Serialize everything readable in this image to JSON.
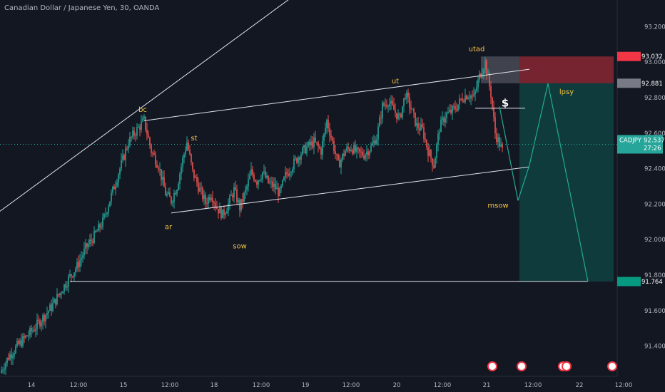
{
  "header": {
    "title": "Canadian Dollar / Japanese Yen, 30, OANDA"
  },
  "chart_data": {
    "type": "candlestick",
    "symbol": "CADJPY",
    "ylim": [
      91.23,
      93.35
    ],
    "y_ticks": [
      "93.200",
      "93.000",
      "92.800",
      "92.600",
      "92.400",
      "92.200",
      "92.000",
      "91.800",
      "91.600",
      "91.400"
    ],
    "y_tick_values": [
      93.2,
      93.0,
      92.8,
      92.6,
      92.4,
      92.2,
      92.0,
      91.8,
      91.6,
      91.4
    ],
    "x_ticks": [
      "14",
      "12:00",
      "15",
      "12:00",
      "18",
      "12:00",
      "19",
      "12:00",
      "20",
      "12:00",
      "21",
      "12:00",
      "12:00",
      "22",
      "12:00"
    ],
    "price_path": [
      [
        0,
        91.25
      ],
      [
        6,
        91.34
      ],
      [
        12,
        91.4
      ],
      [
        18,
        91.45
      ],
      [
        24,
        91.5
      ],
      [
        30,
        91.56
      ],
      [
        36,
        91.62
      ],
      [
        42,
        91.7
      ],
      [
        48,
        91.78
      ],
      [
        54,
        91.85
      ],
      [
        60,
        91.95
      ],
      [
        66,
        92.02
      ],
      [
        72,
        92.1
      ],
      [
        78,
        92.25
      ],
      [
        84,
        92.4
      ],
      [
        90,
        92.55
      ],
      [
        96,
        92.62
      ],
      [
        101,
        92.67
      ],
      [
        106,
        92.5
      ],
      [
        111,
        92.42
      ],
      [
        116,
        92.26
      ],
      [
        120,
        92.22
      ],
      [
        124,
        92.3
      ],
      [
        128,
        92.45
      ],
      [
        131,
        92.55
      ],
      [
        135,
        92.38
      ],
      [
        140,
        92.28
      ],
      [
        144,
        92.21
      ],
      [
        148,
        92.26
      ],
      [
        152,
        92.18
      ],
      [
        156,
        92.14
      ],
      [
        160,
        92.2
      ],
      [
        164,
        92.28
      ],
      [
        168,
        92.18
      ],
      [
        172,
        92.27
      ],
      [
        176,
        92.38
      ],
      [
        180,
        92.33
      ],
      [
        184,
        92.38
      ],
      [
        188,
        92.32
      ],
      [
        192,
        92.3
      ],
      [
        196,
        92.26
      ],
      [
        200,
        92.36
      ],
      [
        205,
        92.42
      ],
      [
        210,
        92.48
      ],
      [
        215,
        92.52
      ],
      [
        220,
        92.55
      ],
      [
        225,
        92.5
      ],
      [
        229,
        92.67
      ],
      [
        233,
        92.55
      ],
      [
        237,
        92.42
      ],
      [
        242,
        92.5
      ],
      [
        246,
        92.52
      ],
      [
        250,
        92.49
      ],
      [
        255,
        92.48
      ],
      [
        260,
        92.52
      ],
      [
        264,
        92.58
      ],
      [
        268,
        92.75
      ],
      [
        272,
        92.78
      ],
      [
        276,
        92.73
      ],
      [
        280,
        92.68
      ],
      [
        284,
        92.82
      ],
      [
        288,
        92.74
      ],
      [
        292,
        92.64
      ],
      [
        296,
        92.62
      ],
      [
        300,
        92.5
      ],
      [
        304,
        92.42
      ],
      [
        308,
        92.63
      ],
      [
        312,
        92.7
      ],
      [
        316,
        92.72
      ],
      [
        320,
        92.75
      ],
      [
        324,
        92.8
      ],
      [
        328,
        92.82
      ],
      [
        332,
        92.8
      ],
      [
        336,
        92.92
      ],
      [
        340,
        93.0
      ],
      [
        344,
        92.82
      ],
      [
        347,
        92.6
      ],
      [
        350,
        92.54
      ],
      [
        352,
        92.5
      ]
    ],
    "lines": [
      {
        "from": [
          0,
          92.16
        ],
        "to": [
          229,
          93.51
        ],
        "note": "long rising trendline"
      },
      {
        "from": [
          101,
          92.67
        ],
        "to": [
          371,
          92.96
        ],
        "note": "upper channel"
      },
      {
        "from": [
          120,
          92.15
        ],
        "to": [
          371,
          92.41
        ],
        "note": "lower channel"
      },
      {
        "from": [
          49,
          91.765
        ],
        "to": [
          412,
          91.765
        ],
        "note": "support / target"
      },
      {
        "from": [
          333,
          92.74
        ],
        "to": [
          368,
          92.74
        ],
        "note": "$ level"
      }
    ],
    "zones": [
      {
        "x_from": 364,
        "x_to": 430,
        "y_from": 92.881,
        "y_to": 93.032,
        "color": "#f23645",
        "kind": "stop"
      },
      {
        "x_from": 337,
        "x_to": 364,
        "y_from": 92.881,
        "y_to": 93.032,
        "color": "#787b86",
        "kind": "entry"
      },
      {
        "x_from": 364,
        "x_to": 430,
        "y_from": 91.764,
        "y_to": 92.881,
        "color": "#089981",
        "kind": "target"
      }
    ],
    "projection": [
      [
        350,
        92.75
      ],
      [
        363,
        92.22
      ],
      [
        371,
        92.42
      ],
      [
        384,
        92.88
      ],
      [
        412,
        91.764
      ]
    ],
    "annotations": [
      {
        "text": "bc",
        "x": 100,
        "y": 92.72
      },
      {
        "text": "st",
        "x": 136,
        "y": 92.56
      },
      {
        "text": "ar",
        "x": 118,
        "y": 92.06
      },
      {
        "text": "sow",
        "x": 168,
        "y": 91.95
      },
      {
        "text": "ut",
        "x": 277,
        "y": 92.88
      },
      {
        "text": "utad",
        "x": 334,
        "y": 93.06
      },
      {
        "text": "lpsy",
        "x": 397,
        "y": 92.82
      },
      {
        "text": "msow",
        "x": 349,
        "y": 92.18
      },
      {
        "text": "$",
        "x": 354,
        "y": 92.75
      }
    ],
    "price_tags": [
      {
        "label": "93.032",
        "value": 93.032,
        "color": "#f23645"
      },
      {
        "label": "92.881",
        "value": 92.881,
        "color": "#787b86"
      },
      {
        "label": "92.537",
        "value": 92.537,
        "color": "#26a69a",
        "symbol": "CADJPY",
        "countdown": "27:26"
      },
      {
        "label": "91.764",
        "value": 91.764,
        "color": "#089981"
      }
    ]
  }
}
